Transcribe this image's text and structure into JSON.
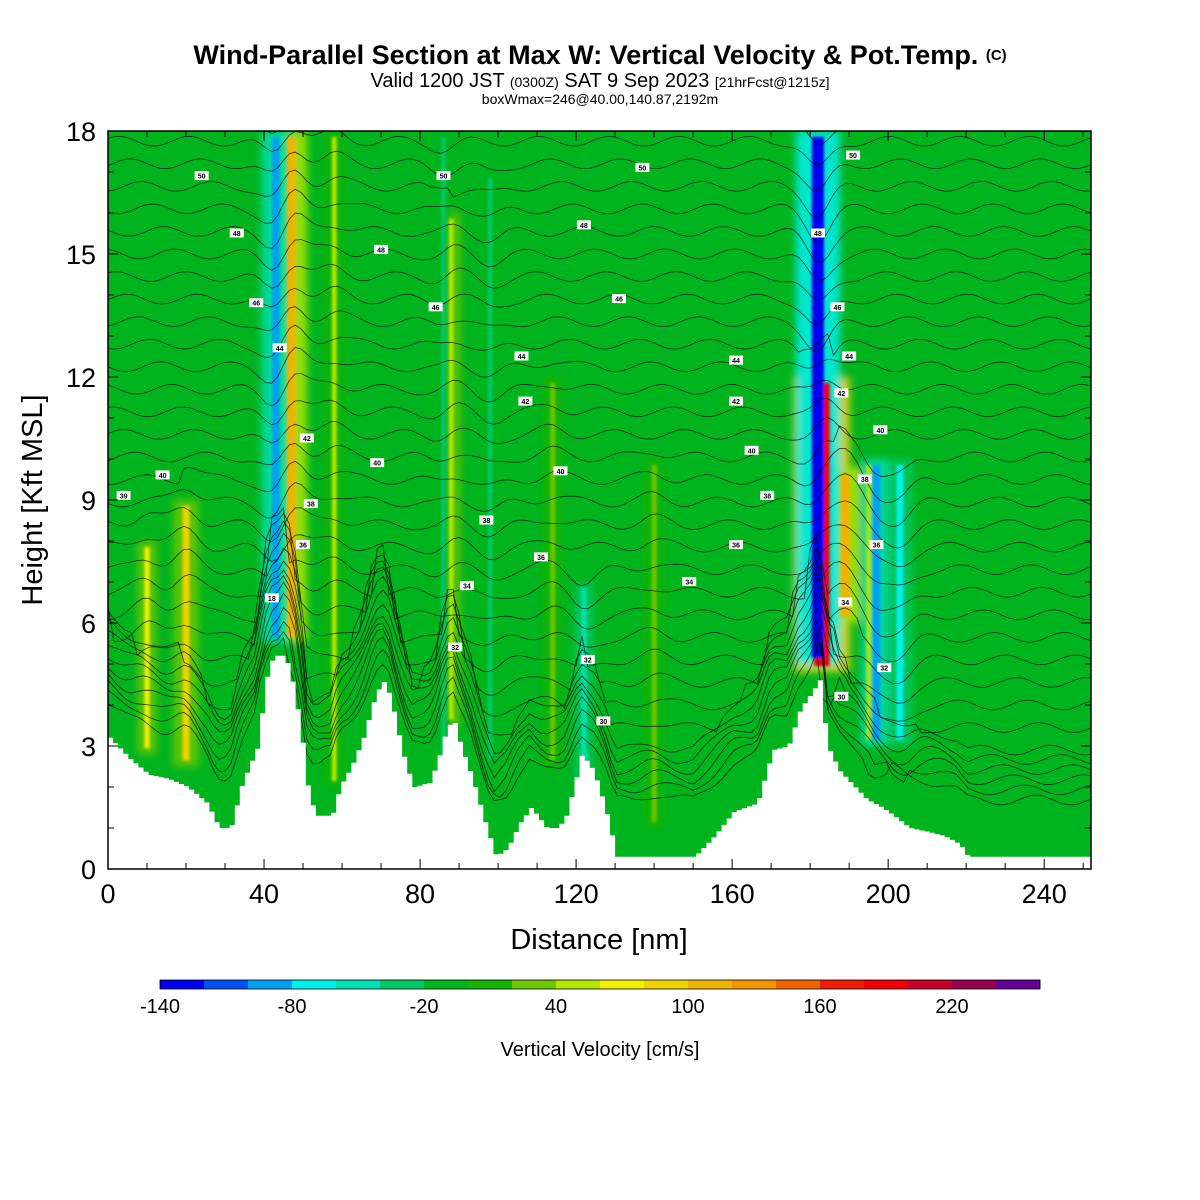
{
  "title": {
    "main": "Wind-Parallel Section at Max W: Vertical Velocity & Pot.Temp.",
    "copyright": "(C)",
    "valid_prefix": "Valid 1200 JST",
    "valid_zulu": "(0300Z)",
    "valid_date": "SAT 9 Sep 2023",
    "forecast": "[21hrFcst@1215z]",
    "box_info": "boxWmax=246@40.00,140.87,2192m"
  },
  "chart_data": {
    "type": "heatmap",
    "xlabel": "Distance [nm]",
    "ylabel": "Height [Kft MSL]",
    "xlim": [
      0,
      252
    ],
    "ylim": [
      0,
      18
    ],
    "x_ticks": [
      0,
      40,
      80,
      120,
      160,
      200,
      240
    ],
    "y_ticks": [
      0,
      3,
      6,
      9,
      12,
      15,
      18
    ],
    "terrain_height_kft": [
      [
        0,
        3.2
      ],
      [
        5,
        2.7
      ],
      [
        10,
        2.3
      ],
      [
        15,
        2.2
      ],
      [
        20,
        2.0
      ],
      [
        25,
        1.6
      ],
      [
        28,
        1.0
      ],
      [
        31,
        1.0
      ],
      [
        34,
        2.1
      ],
      [
        38,
        3.0
      ],
      [
        40,
        4.6
      ],
      [
        42,
        5.2
      ],
      [
        45,
        5.2
      ],
      [
        47,
        4.5
      ],
      [
        49,
        3.4
      ],
      [
        51,
        1.8
      ],
      [
        53,
        1.3
      ],
      [
        57,
        1.3
      ],
      [
        59,
        2.0
      ],
      [
        62,
        2.5
      ],
      [
        65,
        3.2
      ],
      [
        68,
        4.2
      ],
      [
        70,
        4.6
      ],
      [
        72,
        4.2
      ],
      [
        74,
        3.3
      ],
      [
        76,
        2.5
      ],
      [
        78,
        2.0
      ],
      [
        82,
        2.1
      ],
      [
        84,
        2.6
      ],
      [
        86,
        3.3
      ],
      [
        88,
        3.7
      ],
      [
        90,
        3.0
      ],
      [
        93,
        2.2
      ],
      [
        96,
        1.2
      ],
      [
        99,
        0.3
      ],
      [
        102,
        0.5
      ],
      [
        105,
        1.1
      ],
      [
        108,
        1.5
      ],
      [
        112,
        1.0
      ],
      [
        115,
        1.0
      ],
      [
        117,
        1.3
      ],
      [
        119,
        2.0
      ],
      [
        121,
        2.8
      ],
      [
        124,
        2.4
      ],
      [
        127,
        1.5
      ],
      [
        130,
        0.3
      ],
      [
        150,
        0.3
      ],
      [
        155,
        0.8
      ],
      [
        160,
        1.4
      ],
      [
        166,
        1.6
      ],
      [
        170,
        2.9
      ],
      [
        174,
        3.0
      ],
      [
        177,
        3.9
      ],
      [
        180,
        4.3
      ],
      [
        182,
        4.6
      ],
      [
        184,
        3.0
      ],
      [
        187,
        2.4
      ],
      [
        190,
        2.1
      ],
      [
        194,
        1.7
      ],
      [
        198,
        1.5
      ],
      [
        201,
        1.3
      ],
      [
        205,
        1.0
      ],
      [
        210,
        0.9
      ],
      [
        214,
        0.8
      ],
      [
        218,
        0.6
      ],
      [
        220,
        0.3
      ],
      [
        246,
        0.3
      ]
    ],
    "updraft_bands": [
      {
        "x": 10,
        "bottom": 2.8,
        "top": 8.0,
        "w": 60
      },
      {
        "x": 20,
        "bottom": 2.5,
        "top": 9.0,
        "w": 80
      },
      {
        "x": 47,
        "bottom": 5.5,
        "top": 18,
        "w": 100
      },
      {
        "x": 58,
        "bottom": 2.0,
        "top": 18,
        "w": 40
      },
      {
        "x": 88,
        "bottom": 3.5,
        "top": 16,
        "w": 50
      },
      {
        "x": 114,
        "bottom": 2.5,
        "top": 12,
        "w": 30
      },
      {
        "x": 140,
        "bottom": 1.0,
        "top": 10,
        "w": 30
      },
      {
        "x": 183,
        "bottom": 4.8,
        "top": 12,
        "w": 180
      },
      {
        "x": 189,
        "bottom": 6.0,
        "top": 9.8,
        "w": 110
      },
      {
        "x": 195,
        "bottom": 3.0,
        "top": 10,
        "w": 40
      }
    ],
    "downdraft_bands": [
      {
        "x": 43,
        "bottom": 5.5,
        "top": 18,
        "w": -90
      },
      {
        "x": 86,
        "bottom": 2.5,
        "top": 18,
        "w": -40
      },
      {
        "x": 98,
        "bottom": 2.5,
        "top": 17,
        "w": -40
      },
      {
        "x": 122,
        "bottom": 2.2,
        "top": 7,
        "w": -60
      },
      {
        "x": 182,
        "bottom": 5.0,
        "top": 18,
        "w": -140
      },
      {
        "x": 197,
        "bottom": 3.0,
        "top": 10,
        "w": -90
      },
      {
        "x": 203,
        "bottom": 3.0,
        "top": 10,
        "w": -80
      }
    ],
    "theta_contour_labels": [
      {
        "x": 24,
        "y": 16.9,
        "text": "50"
      },
      {
        "x": 33,
        "y": 15.5,
        "text": "48"
      },
      {
        "x": 38,
        "y": 13.8,
        "text": "46"
      },
      {
        "x": 44,
        "y": 12.7,
        "text": "44"
      },
      {
        "x": 51,
        "y": 10.5,
        "text": "42"
      },
      {
        "x": 14,
        "y": 9.6,
        "text": "40"
      },
      {
        "x": 4,
        "y": 9.1,
        "text": "39"
      },
      {
        "x": 52,
        "y": 8.9,
        "text": "38"
      },
      {
        "x": 50,
        "y": 7.9,
        "text": "36"
      },
      {
        "x": 42,
        "y": 6.6,
        "text": "18"
      },
      {
        "x": 69,
        "y": 9.9,
        "text": "40"
      },
      {
        "x": 70,
        "y": 15.1,
        "text": "48"
      },
      {
        "x": 84,
        "y": 13.7,
        "text": "46"
      },
      {
        "x": 86,
        "y": 16.9,
        "text": "50"
      },
      {
        "x": 106,
        "y": 12.5,
        "text": "44"
      },
      {
        "x": 107,
        "y": 11.4,
        "text": "42"
      },
      {
        "x": 116,
        "y": 9.7,
        "text": "40"
      },
      {
        "x": 97,
        "y": 8.5,
        "text": "38"
      },
      {
        "x": 111,
        "y": 7.6,
        "text": "36"
      },
      {
        "x": 92,
        "y": 6.9,
        "text": "34"
      },
      {
        "x": 89,
        "y": 5.4,
        "text": "32"
      },
      {
        "x": 123,
        "y": 5.1,
        "text": "32"
      },
      {
        "x": 127,
        "y": 3.6,
        "text": "30"
      },
      {
        "x": 122,
        "y": 15.7,
        "text": "48"
      },
      {
        "x": 131,
        "y": 13.9,
        "text": "46"
      },
      {
        "x": 137,
        "y": 17.1,
        "text": "50"
      },
      {
        "x": 149,
        "y": 7.0,
        "text": "34"
      },
      {
        "x": 161,
        "y": 12.4,
        "text": "44"
      },
      {
        "x": 161,
        "y": 11.4,
        "text": "42"
      },
      {
        "x": 165,
        "y": 10.2,
        "text": "40"
      },
      {
        "x": 169,
        "y": 9.1,
        "text": "38"
      },
      {
        "x": 161,
        "y": 7.9,
        "text": "36"
      },
      {
        "x": 182,
        "y": 15.5,
        "text": "48"
      },
      {
        "x": 187,
        "y": 13.7,
        "text": "46"
      },
      {
        "x": 190,
        "y": 12.5,
        "text": "44"
      },
      {
        "x": 188,
        "y": 11.6,
        "text": "42"
      },
      {
        "x": 198,
        "y": 10.7,
        "text": "40"
      },
      {
        "x": 194,
        "y": 9.5,
        "text": "38"
      },
      {
        "x": 197,
        "y": 7.9,
        "text": "36"
      },
      {
        "x": 189,
        "y": 6.5,
        "text": "34"
      },
      {
        "x": 199,
        "y": 4.9,
        "text": "32"
      },
      {
        "x": 188,
        "y": 4.2,
        "text": "30"
      },
      {
        "x": 191,
        "y": 17.4,
        "text": "50"
      }
    ]
  },
  "colorbar": {
    "label": "Vertical Velocity [cm/s]",
    "min": -140,
    "step": 20,
    "tick_labels": [
      "-140",
      "-80",
      "-20",
      "40",
      "100",
      "160",
      "220"
    ],
    "colors": [
      "#0000f0",
      "#0050f0",
      "#00a0f0",
      "#00f0f0",
      "#00e0b4",
      "#00c864",
      "#00b41e",
      "#14b400",
      "#6ec800",
      "#b4e600",
      "#f0f000",
      "#f0d200",
      "#f0b400",
      "#f09600",
      "#f06400",
      "#f01e00",
      "#f00000",
      "#c80028",
      "#960050",
      "#640096"
    ]
  }
}
